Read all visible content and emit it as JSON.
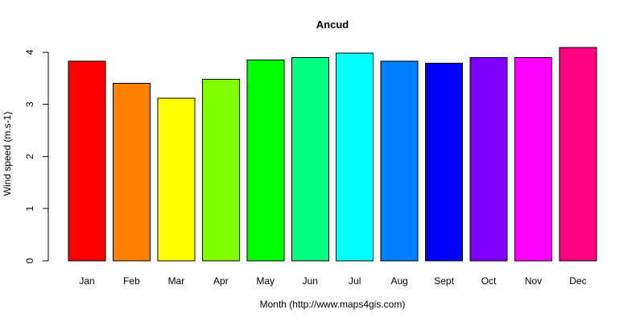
{
  "chart_data": {
    "type": "bar",
    "title": "Ancud",
    "xlabel": "Month (http://www.maps4gis.com)",
    "ylabel": "Wind speed (m.s-1)",
    "categories": [
      "Jan",
      "Feb",
      "Mar",
      "Apr",
      "May",
      "Jun",
      "Jul",
      "Aug",
      "Sept",
      "Oct",
      "Nov",
      "Dec"
    ],
    "values": [
      3.83,
      3.4,
      3.12,
      3.48,
      3.85,
      3.9,
      3.98,
      3.83,
      3.79,
      3.9,
      3.9,
      4.09
    ],
    "colors": [
      "#FF0000",
      "#FF8000",
      "#FFFF00",
      "#80FF00",
      "#00FF00",
      "#00FF80",
      "#00FFFF",
      "#0080FF",
      "#0000FF",
      "#8000FF",
      "#FF00FF",
      "#FF0080"
    ],
    "yticks": [
      0,
      1,
      2,
      3,
      4
    ],
    "ylim": [
      0,
      4.09
    ],
    "grid": false,
    "legend": "none"
  }
}
